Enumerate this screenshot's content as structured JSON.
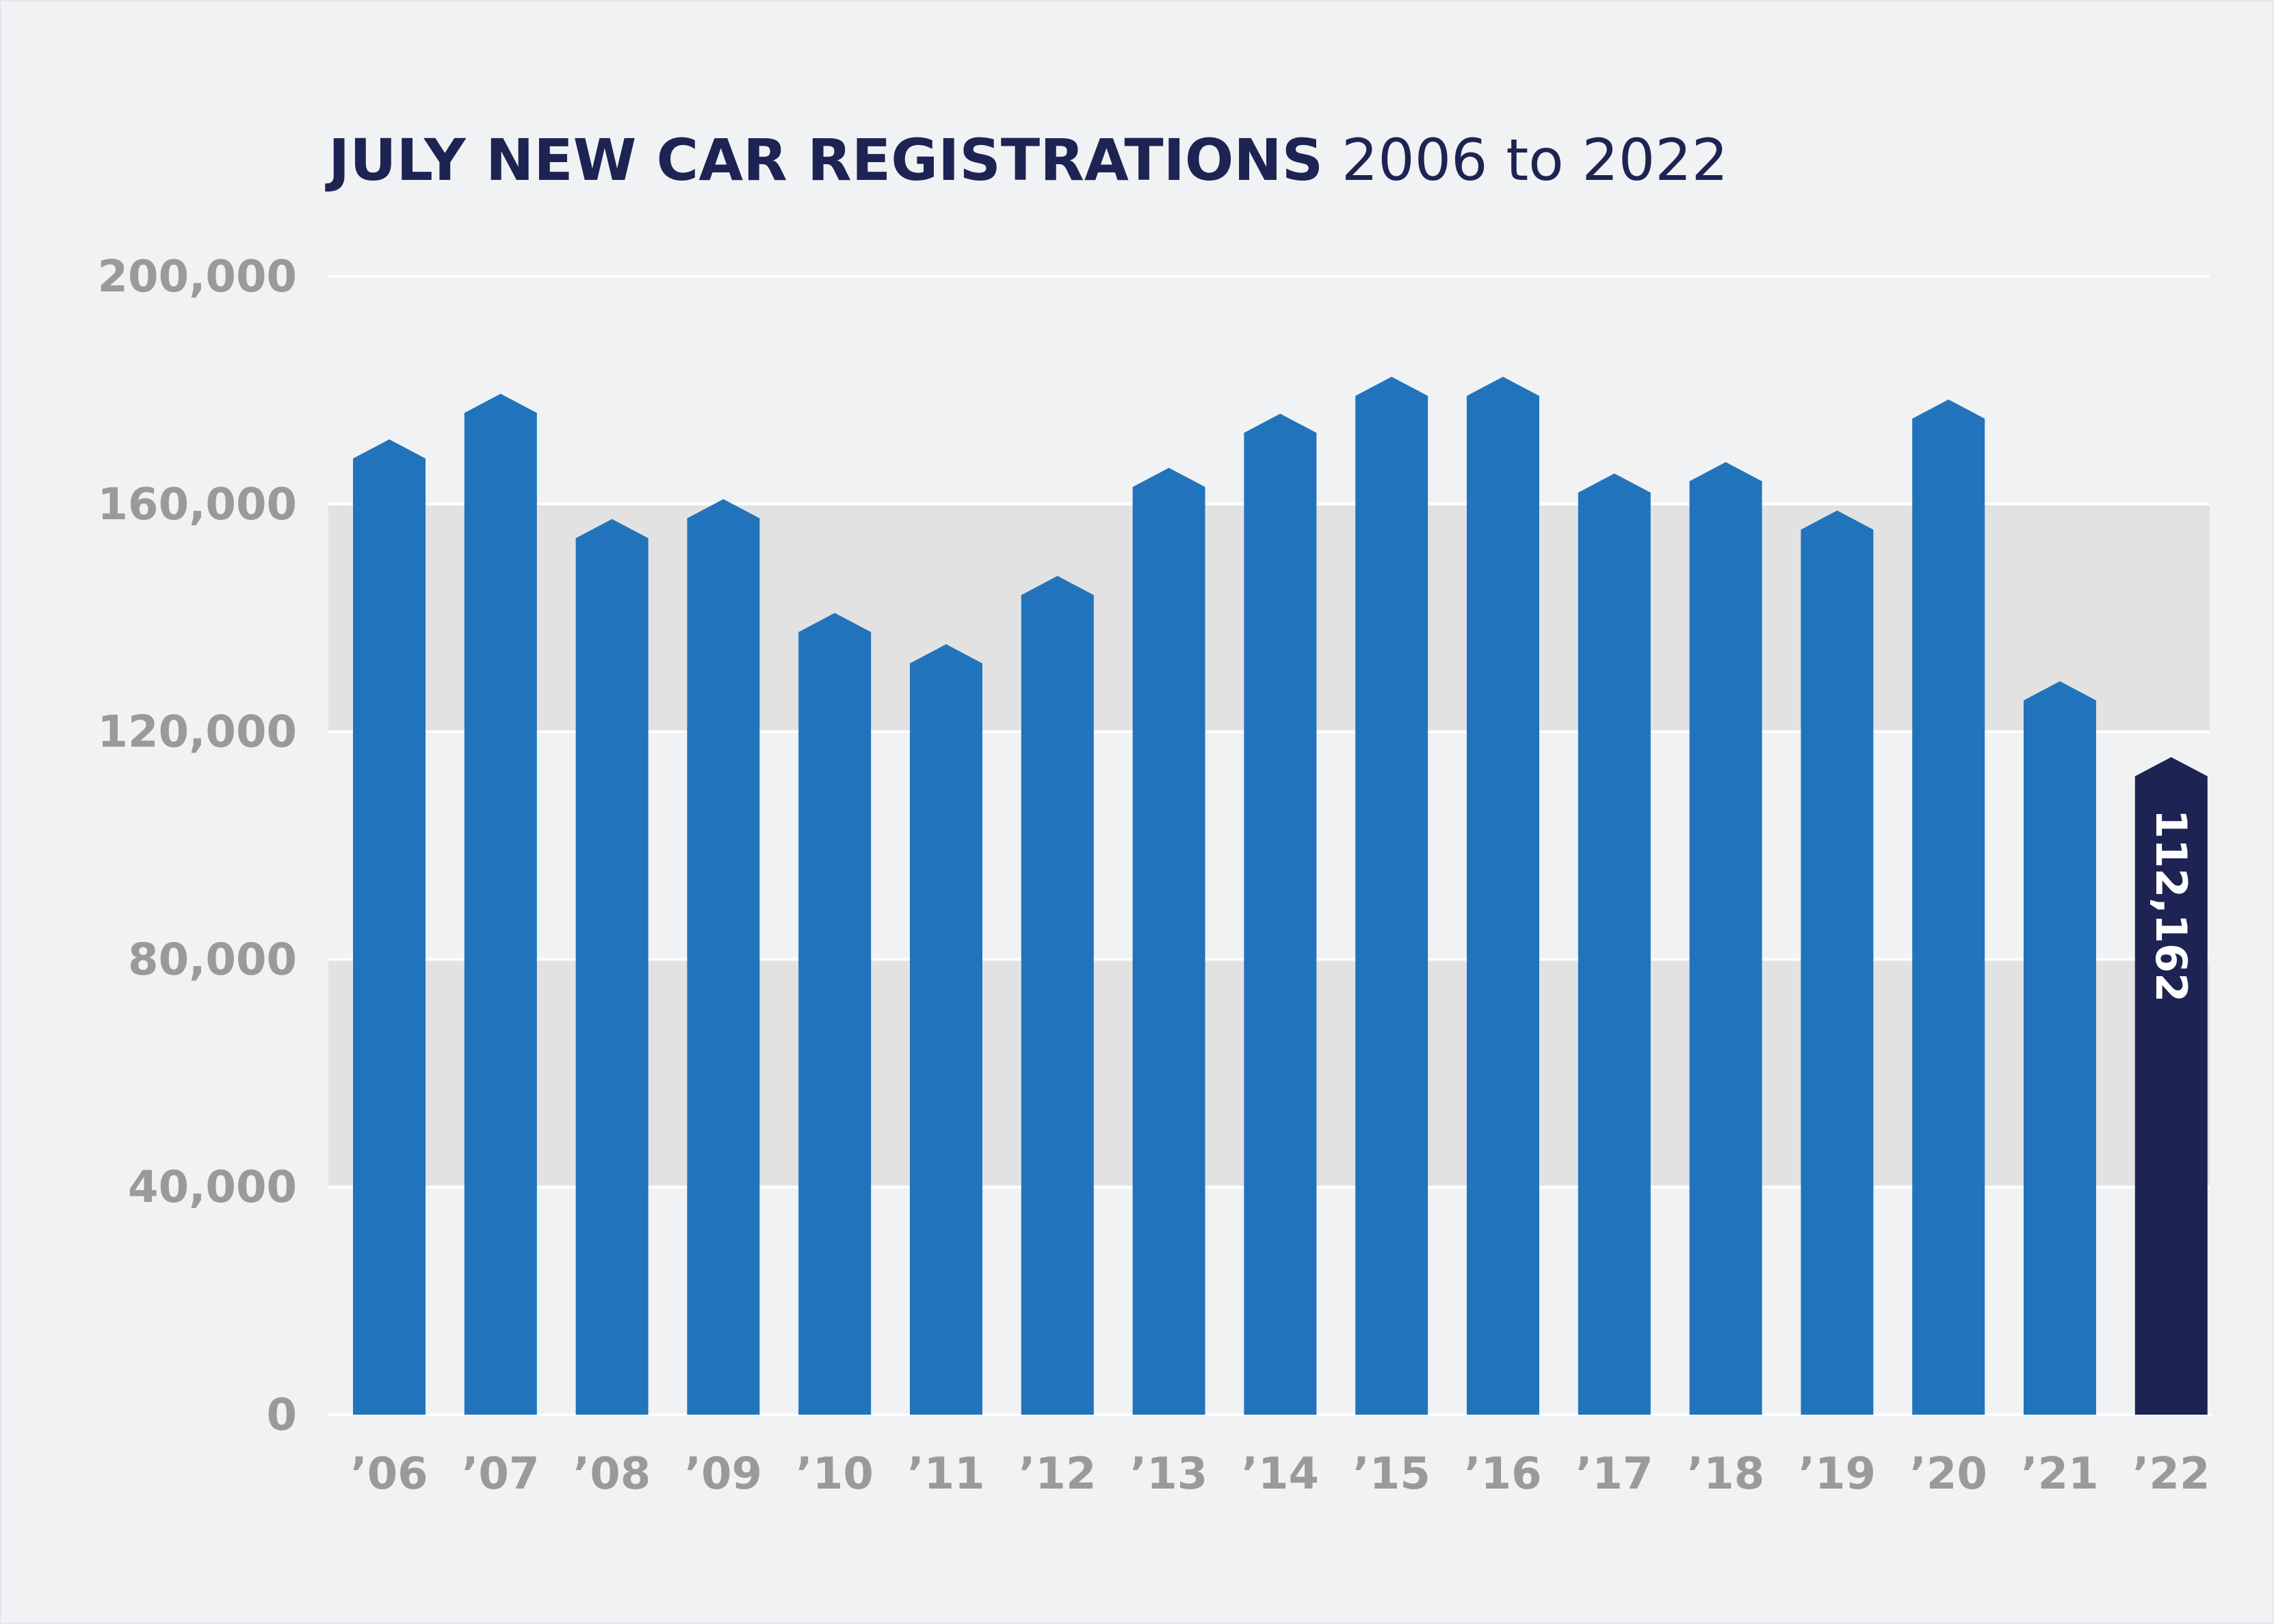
{
  "title": "JULY NEW CAR REGISTRATIONS",
  "subtitle": "2006 to 2022",
  "colors": {
    "background": "#f0f2f4",
    "band": "#e3e2e3",
    "gridline": "#ffffff",
    "bar": "#2174bb",
    "highlight": "#1d2453",
    "tick_text": "#999a9c",
    "title": "#1d2453"
  },
  "chart_data": {
    "type": "bar",
    "title": "JULY NEW CAR REGISTRATIONS",
    "subtitle": "2006 to 2022",
    "categories": [
      "’06",
      "’07",
      "’08",
      "’09",
      "’10",
      "’11",
      "’12",
      "’13",
      "’14",
      "’15",
      "’16",
      "’17",
      "’18",
      "’19",
      "’20",
      "’21",
      "’22"
    ],
    "values": [
      168000,
      176000,
      154000,
      157500,
      137500,
      132000,
      144000,
      163000,
      172500,
      179000,
      179000,
      162000,
      164000,
      155500,
      175000,
      125500,
      112162
    ],
    "highlight_index": 16,
    "data_labels": [
      {
        "index": 16,
        "text": "112,162"
      }
    ],
    "ylim": [
      0,
      200000
    ],
    "yticks": [
      0,
      40000,
      80000,
      120000,
      160000,
      200000
    ],
    "ytick_labels": [
      "0",
      "40,000",
      "80,000",
      "120,000",
      "160,000",
      "200,000"
    ],
    "shaded_bands": [
      [
        40000,
        80000
      ],
      [
        120000,
        160000
      ]
    ],
    "grid": true,
    "legend": "none",
    "xlabel": "",
    "ylabel": ""
  }
}
